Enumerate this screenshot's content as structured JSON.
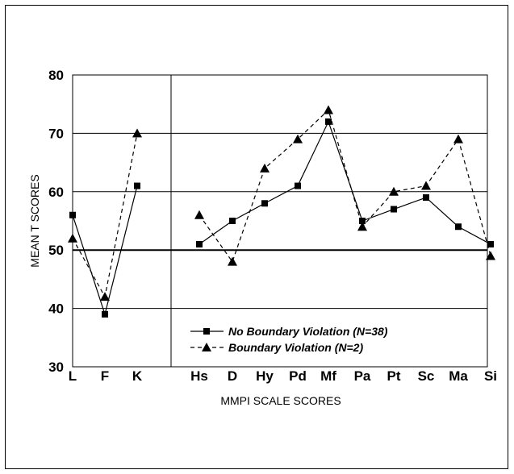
{
  "chart_data": {
    "type": "line",
    "title": "",
    "xlabel": "MMPI SCALE SCORES",
    "ylabel": "MEAN T SCORES",
    "ylim": [
      30,
      80
    ],
    "yticks": [
      "30",
      "40",
      "50",
      "60",
      "70",
      "80"
    ],
    "categories": [
      "L",
      "F",
      "K",
      "Hs",
      "D",
      "Hy",
      "Pd",
      "Mf",
      "Pa",
      "Pt",
      "Sc",
      "Ma",
      "Si"
    ],
    "legend_position": "bottom-right inside",
    "series": [
      {
        "name": "No Boundary Violation (N=38)",
        "marker": "square",
        "line": "solid",
        "groups": [
          {
            "categories": [
              "L",
              "F",
              "K"
            ],
            "values": [
              56,
              39,
              61
            ]
          },
          {
            "categories": [
              "Hs",
              "D",
              "Hy",
              "Pd",
              "Mf",
              "Pa",
              "Pt",
              "Sc",
              "Ma",
              "Si"
            ],
            "values": [
              51,
              55,
              58,
              61,
              72,
              55,
              57,
              59,
              54,
              51
            ]
          }
        ]
      },
      {
        "name": "Boundary Violation (N=2)",
        "marker": "triangle",
        "line": "dashed",
        "groups": [
          {
            "categories": [
              "L",
              "F",
              "K"
            ],
            "values": [
              52,
              42,
              70
            ]
          },
          {
            "categories": [
              "Hs",
              "D",
              "Hy",
              "Pd",
              "Mf",
              "Pa",
              "Pt",
              "Sc",
              "Ma",
              "Si"
            ],
            "values": [
              56,
              48,
              64,
              69,
              74,
              54,
              60,
              61,
              69,
              49
            ]
          }
        ]
      }
    ],
    "reference_line": 50
  }
}
